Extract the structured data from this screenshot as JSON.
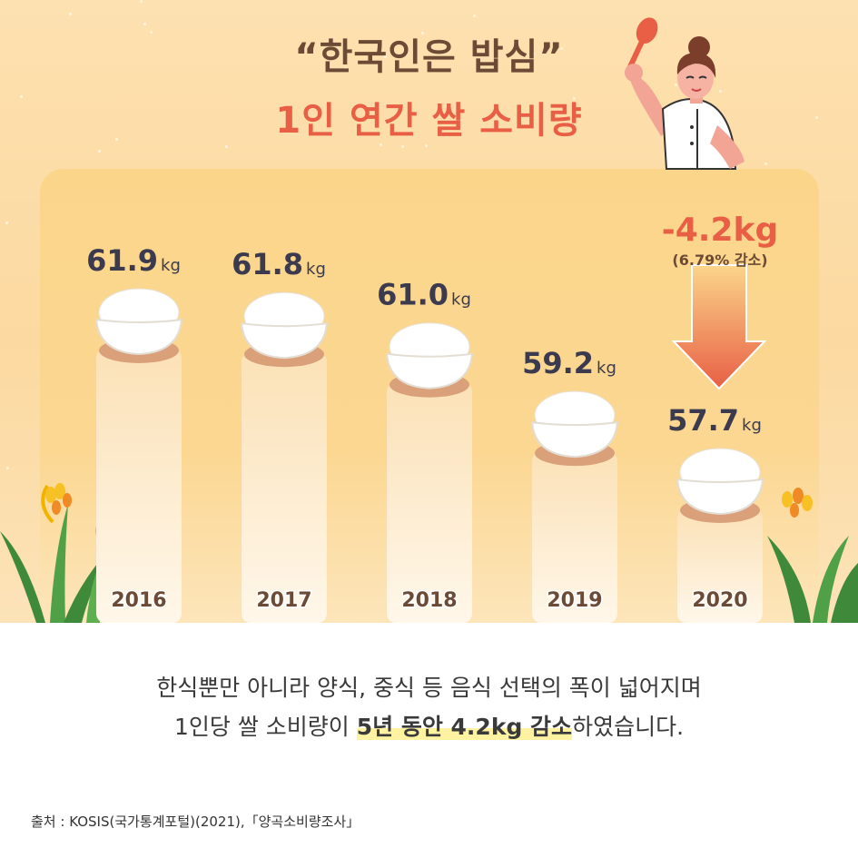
{
  "title_line1": "“한국인은 밥심”",
  "title_line2": "1인 연간 쌀 소비량",
  "chart_data": {
    "type": "bar",
    "categories": [
      "2016",
      "2017",
      "2018",
      "2019",
      "2020"
    ],
    "values": [
      61.9,
      61.8,
      61.0,
      59.2,
      57.7
    ],
    "value_labels": [
      "61.9",
      "61.8",
      "61.0",
      "59.2",
      "57.7"
    ],
    "unit": "kg",
    "annotation": {
      "change": "-4.2kg",
      "detail": "(6.79% 감소)"
    },
    "colors": {
      "value_text": "#3b3a4e",
      "year_text": "#6b4a36",
      "change": "#e85f45",
      "bar_top": "#fbe4c0",
      "bowl_base": "#d9a07a"
    }
  },
  "caption": {
    "line1": "한식뿐만 아니라 양식, 중식 등 음식 선택의 폭이 넓어지며",
    "line2_pre": "1인당 쌀 소비량이 ",
    "line2_highlight": "5년 동안 4.2kg 감소",
    "line2_post": "하였습니다."
  },
  "source": "출처 : KOSIS(국가통계포털)(2021),「양곡소비량조사」"
}
